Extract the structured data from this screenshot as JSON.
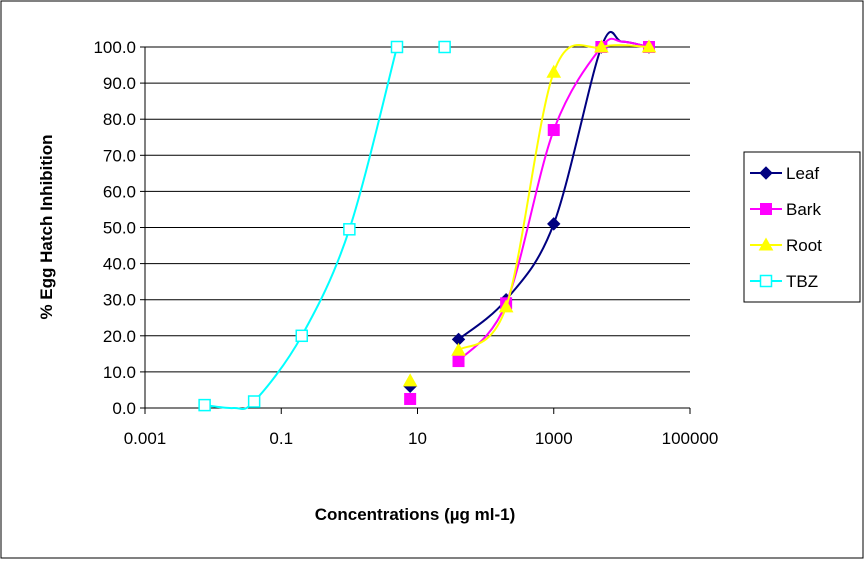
{
  "chart_data": {
    "type": "scatter",
    "title": "",
    "xlabel": "Concentrations (µg ml-1)",
    "ylabel": "% Egg Hatch Inhibition",
    "x_scale": "log",
    "xlim": [
      0.001,
      100000
    ],
    "ylim": [
      0,
      100
    ],
    "x_ticks": [
      0.001,
      0.1,
      10,
      1000,
      100000
    ],
    "x_tick_labels": [
      "0.001",
      "0.1",
      "10",
      "1000",
      "100000"
    ],
    "y_ticks": [
      0,
      10,
      20,
      30,
      40,
      50,
      60,
      70,
      80,
      90,
      100
    ],
    "y_tick_labels": [
      "0.0",
      "10.0",
      "20.0",
      "30.0",
      "40.0",
      "50.0",
      "60.0",
      "70.0",
      "80.0",
      "90.0",
      "100.0"
    ],
    "grid": "horizontal",
    "legend_position": "right",
    "series": [
      {
        "name": "Leaf",
        "color": "#000080",
        "marker": "diamond",
        "points": [
          [
            7.8,
            6
          ],
          [
            40,
            19
          ],
          [
            200,
            30
          ],
          [
            1000,
            51
          ],
          [
            5000,
            100
          ],
          [
            25000,
            100
          ]
        ],
        "curve": [
          [
            40,
            19
          ],
          [
            200,
            30
          ],
          [
            1000,
            51
          ],
          [
            5000,
            100
          ],
          [
            10000,
            101.5
          ],
          [
            25000,
            100
          ]
        ]
      },
      {
        "name": "Bark",
        "color": "#ff00ff",
        "marker": "square",
        "points": [
          [
            7.8,
            2.5
          ],
          [
            40,
            13
          ],
          [
            200,
            29
          ],
          [
            1000,
            77
          ],
          [
            5000,
            100
          ],
          [
            25000,
            100
          ]
        ],
        "curve": [
          [
            40,
            13
          ],
          [
            200,
            29
          ],
          [
            1000,
            77
          ],
          [
            5000,
            100
          ],
          [
            10000,
            101.5
          ],
          [
            25000,
            100
          ]
        ]
      },
      {
        "name": "Root",
        "color": "#ffff00",
        "marker": "triangle",
        "points": [
          [
            7.8,
            7.5
          ],
          [
            40,
            16
          ],
          [
            200,
            28
          ],
          [
            1000,
            93
          ],
          [
            5000,
            100
          ],
          [
            25000,
            100
          ]
        ],
        "curve": [
          [
            40,
            16
          ],
          [
            200,
            28
          ],
          [
            1000,
            93
          ],
          [
            5000,
            100
          ],
          [
            25000,
            100
          ]
        ]
      },
      {
        "name": "TBZ",
        "color": "#00ffff",
        "marker": "open-square",
        "points": [
          [
            0.0075,
            0.8
          ],
          [
            0.04,
            1.8
          ],
          [
            0.2,
            20
          ],
          [
            1,
            49.5
          ],
          [
            5,
            100
          ],
          [
            25,
            100
          ]
        ],
        "curve": [
          [
            0.0075,
            0.8
          ],
          [
            0.02,
            0
          ],
          [
            0.04,
            1.8
          ],
          [
            0.2,
            20
          ],
          [
            1,
            49.5
          ],
          [
            5,
            100
          ]
        ]
      }
    ]
  }
}
